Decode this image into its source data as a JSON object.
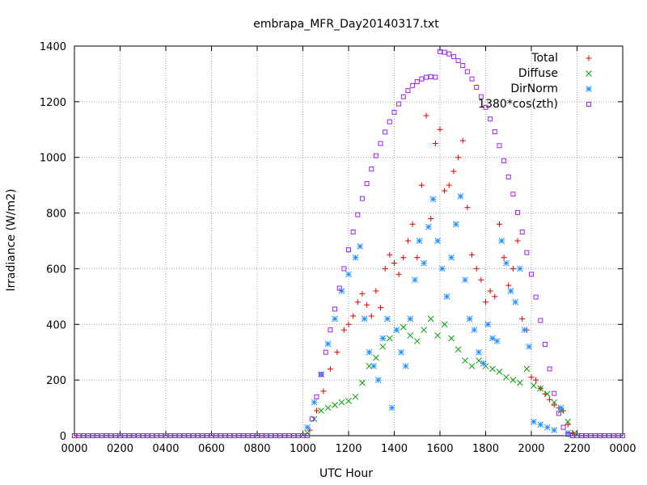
{
  "chart_data": {
    "type": "scatter",
    "title": "embrapa_MFR_Day20140317.txt",
    "xlabel": "UTC Hour",
    "ylabel": "Irradiance (W/m2)",
    "xlim": [
      0,
      2400
    ],
    "ylim": [
      0,
      1400
    ],
    "grid": true,
    "legend_position": "top-right",
    "x_ticks": [
      "0000",
      "0200",
      "0400",
      "0600",
      "0800",
      "1000",
      "1200",
      "1400",
      "1600",
      "1800",
      "2000",
      "2200",
      "0000"
    ],
    "y_ticks": [
      "0",
      "200",
      "400",
      "600",
      "800",
      "1000",
      "1200",
      "1400"
    ],
    "series": [
      {
        "name": "Total",
        "color": "#e00000",
        "marker": "plus",
        "x": [
          1030,
          1060,
          1090,
          1120,
          1150,
          1180,
          1200,
          1220,
          1240,
          1260,
          1280,
          1300,
          1320,
          1340,
          1360,
          1380,
          1400,
          1420,
          1440,
          1460,
          1480,
          1500,
          1520,
          1540,
          1560,
          1580,
          1600,
          1620,
          1640,
          1660,
          1680,
          1700,
          1720,
          1740,
          1760,
          1780,
          1800,
          1820,
          1840,
          1860,
          1880,
          1900,
          1920,
          1940,
          1960,
          1980,
          2000,
          2020,
          2040,
          2060,
          2080,
          2100,
          2120,
          2140,
          2160,
          2180
        ],
        "values": [
          20,
          90,
          160,
          240,
          300,
          380,
          400,
          430,
          480,
          510,
          470,
          430,
          520,
          460,
          600,
          650,
          620,
          580,
          640,
          700,
          760,
          640,
          900,
          1150,
          780,
          1050,
          1100,
          880,
          900,
          950,
          1000,
          1060,
          820,
          650,
          600,
          560,
          480,
          520,
          500,
          760,
          640,
          540,
          600,
          700,
          420,
          380,
          210,
          200,
          170,
          150,
          130,
          110,
          100,
          90,
          40,
          10
        ]
      },
      {
        "name": "Diffuse",
        "color": "#00a000",
        "marker": "x",
        "x": [
          1020,
          1050,
          1080,
          1110,
          1140,
          1170,
          1200,
          1230,
          1260,
          1290,
          1320,
          1350,
          1380,
          1410,
          1440,
          1470,
          1500,
          1530,
          1560,
          1590,
          1620,
          1650,
          1680,
          1710,
          1740,
          1770,
          1800,
          1830,
          1860,
          1890,
          1920,
          1950,
          1980,
          2010,
          2040,
          2070,
          2100,
          2130,
          2160,
          2190
        ],
        "values": [
          10,
          60,
          90,
          100,
          110,
          120,
          125,
          140,
          190,
          250,
          280,
          320,
          350,
          380,
          390,
          360,
          340,
          380,
          420,
          360,
          400,
          350,
          310,
          270,
          250,
          270,
          250,
          240,
          230,
          210,
          200,
          190,
          240,
          180,
          170,
          150,
          120,
          90,
          50,
          10
        ]
      },
      {
        "name": "DirNorm",
        "color": "#1f8fff",
        "marker": "star",
        "x": [
          1020,
          1050,
          1080,
          1110,
          1140,
          1170,
          1200,
          1230,
          1250,
          1270,
          1290,
          1310,
          1330,
          1350,
          1370,
          1390,
          1410,
          1430,
          1450,
          1470,
          1490,
          1510,
          1530,
          1550,
          1570,
          1590,
          1610,
          1630,
          1650,
          1670,
          1690,
          1710,
          1730,
          1750,
          1770,
          1790,
          1810,
          1830,
          1850,
          1870,
          1890,
          1910,
          1930,
          1950,
          1970,
          1990,
          2010,
          2040,
          2070,
          2100,
          2130,
          2160
        ],
        "values": [
          30,
          120,
          220,
          330,
          420,
          520,
          580,
          640,
          680,
          420,
          300,
          250,
          200,
          350,
          420,
          100,
          380,
          300,
          250,
          420,
          560,
          700,
          620,
          750,
          850,
          700,
          600,
          500,
          640,
          760,
          860,
          560,
          420,
          380,
          300,
          260,
          400,
          350,
          340,
          700,
          620,
          520,
          480,
          600,
          380,
          320,
          50,
          40,
          30,
          20,
          100,
          10
        ]
      },
      {
        "name": "1380*cos(zth)",
        "color": "#a020f0",
        "marker": "square",
        "x": [
          1020,
          1040,
          1060,
          1080,
          1100,
          1120,
          1140,
          1160,
          1180,
          1200,
          1220,
          1240,
          1260,
          1280,
          1300,
          1320,
          1340,
          1360,
          1380,
          1400,
          1420,
          1440,
          1460,
          1480,
          1500,
          1520,
          1540,
          1560,
          1580,
          1600,
          1620,
          1640,
          1660,
          1680,
          1700,
          1720,
          1740,
          1760,
          1780,
          1800,
          1820,
          1840,
          1860,
          1880,
          1900,
          1920,
          1940,
          1960,
          1980,
          2000,
          2020,
          2040,
          2060,
          2080,
          2100,
          2120,
          2140,
          2160,
          2180,
          2200,
          2220
        ],
        "values": [
          0,
          60,
          140,
          220,
          300,
          380,
          455,
          530,
          600,
          668,
          732,
          794,
          852,
          906,
          958,
          1006,
          1050,
          1091,
          1128,
          1162,
          1192,
          1218,
          1240,
          1258,
          1272,
          1282,
          1288,
          1290,
          1288,
          1380,
          1378,
          1372,
          1362,
          1348,
          1330,
          1308,
          1282,
          1252,
          1218,
          1180,
          1138,
          1092,
          1042,
          988,
          930,
          868,
          802,
          732,
          658,
          580,
          498,
          414,
          328,
          240,
          152,
          80,
          30,
          5,
          0,
          0,
          0
        ]
      }
    ]
  }
}
